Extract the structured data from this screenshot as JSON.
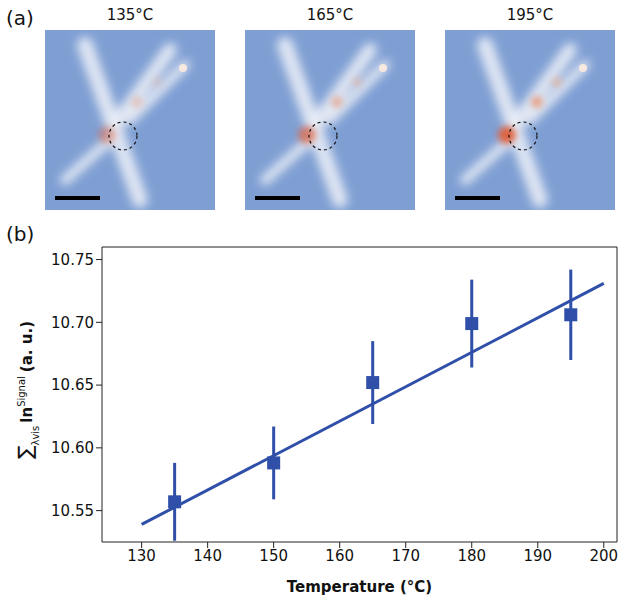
{
  "panel_a": {
    "label": "(a)",
    "image_titles": [
      "135°C",
      "165°C",
      "195°C"
    ]
  },
  "panel_b": {
    "label": "(b)"
  },
  "chart_data": {
    "type": "scatter",
    "xlabel": "Temperature (°C)",
    "ylabel": {
      "sum": "∑",
      "subscript": "λvis",
      "base": "ln",
      "superscript": "Signal",
      "unit": "(a. u.)"
    },
    "xlim": [
      124,
      202
    ],
    "xticks": [
      130,
      140,
      150,
      160,
      170,
      180,
      190,
      200
    ],
    "ylim": [
      10.525,
      10.76
    ],
    "yticks": [
      10.55,
      {
        "value": 10.6,
        "label": "10.60"
      },
      10.65,
      {
        "value": 10.7,
        "label": "10.70"
      },
      10.75
    ],
    "grid": false,
    "series": [
      {
        "type": "scatter",
        "marker": "square",
        "color": "#2f4fa8",
        "x": [
          135,
          150,
          165,
          180,
          195
        ],
        "values": [
          10.557,
          10.588,
          10.652,
          10.699,
          10.706
        ],
        "errors": [
          0.031,
          0.029,
          0.033,
          0.035,
          0.036
        ]
      },
      {
        "type": "line",
        "line_style": "solid",
        "color": "#2f4fa8",
        "x": [
          130,
          200
        ],
        "values": [
          10.539,
          10.731
        ]
      }
    ]
  }
}
